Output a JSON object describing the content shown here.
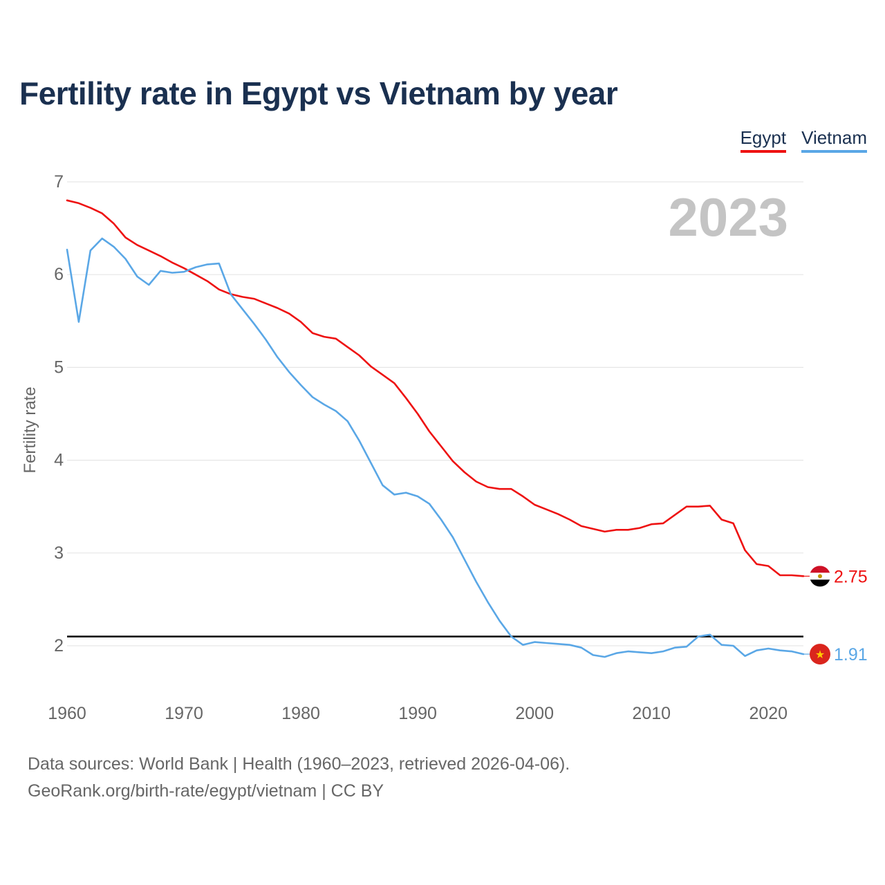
{
  "title": "Fertility rate in Egypt vs Vietnam by year",
  "legend": {
    "egypt_label": "Egypt",
    "vietnam_label": "Vietnam"
  },
  "colors": {
    "egypt": "#ee1111",
    "vietnam": "#5aa7e6",
    "replacement_line": "#000000",
    "grid": "#e6e6e6",
    "year_watermark": "#c4c4c4"
  },
  "source": {
    "line1": "Data sources: World Bank | Health (1960–2023, retrieved 2026-04-06).",
    "line2": "GeoRank.org/birth-rate/egypt/vietnam | CC BY"
  },
  "chart_data": {
    "type": "line",
    "title": "Fertility rate in Egypt vs Vietnam by year",
    "xlabel": "",
    "ylabel": "Fertility rate",
    "year_label": "2023",
    "xlim": [
      1960,
      2023
    ],
    "ylim": [
      1.5,
      7
    ],
    "x_ticks": [
      1960,
      1970,
      1980,
      1990,
      2000,
      2010,
      2020
    ],
    "y_ticks": [
      2,
      3,
      4,
      5,
      6,
      7
    ],
    "grid": true,
    "legend_position": "top-right",
    "reference_line": {
      "y": 2.1
    },
    "x": [
      1960,
      1961,
      1962,
      1963,
      1964,
      1965,
      1966,
      1967,
      1968,
      1969,
      1970,
      1971,
      1972,
      1973,
      1974,
      1975,
      1976,
      1977,
      1978,
      1979,
      1980,
      1981,
      1982,
      1983,
      1984,
      1985,
      1986,
      1987,
      1988,
      1989,
      1990,
      1991,
      1992,
      1993,
      1994,
      1995,
      1996,
      1997,
      1998,
      1999,
      2000,
      2001,
      2002,
      2003,
      2004,
      2005,
      2006,
      2007,
      2008,
      2009,
      2010,
      2011,
      2012,
      2013,
      2014,
      2015,
      2016,
      2017,
      2018,
      2019,
      2020,
      2021,
      2022,
      2023
    ],
    "series": [
      {
        "name": "Egypt",
        "end_label": "2.75",
        "values": [
          6.8,
          6.77,
          6.72,
          6.66,
          6.55,
          6.4,
          6.32,
          6.26,
          6.2,
          6.13,
          6.07,
          6.0,
          5.93,
          5.84,
          5.79,
          5.76,
          5.74,
          5.69,
          5.64,
          5.58,
          5.49,
          5.37,
          5.33,
          5.31,
          5.22,
          5.13,
          5.01,
          4.92,
          4.83,
          4.67,
          4.5,
          4.31,
          4.15,
          3.99,
          3.87,
          3.77,
          3.71,
          3.69,
          3.69,
          3.61,
          3.52,
          3.47,
          3.42,
          3.36,
          3.29,
          3.26,
          3.23,
          3.25,
          3.25,
          3.27,
          3.31,
          3.32,
          3.41,
          3.5,
          3.5,
          3.51,
          3.36,
          3.32,
          3.03,
          2.88,
          2.86,
          2.76,
          2.76,
          2.75
        ]
      },
      {
        "name": "Vietnam",
        "end_label": "1.91",
        "values": [
          6.27,
          5.49,
          6.26,
          6.39,
          6.3,
          6.17,
          5.98,
          5.89,
          6.04,
          6.02,
          6.03,
          6.08,
          6.11,
          6.12,
          5.79,
          5.63,
          5.47,
          5.3,
          5.11,
          4.95,
          4.81,
          4.68,
          4.6,
          4.53,
          4.42,
          4.21,
          3.97,
          3.73,
          3.63,
          3.65,
          3.61,
          3.53,
          3.36,
          3.17,
          2.93,
          2.69,
          2.47,
          2.27,
          2.1,
          2.01,
          2.04,
          2.03,
          2.02,
          2.01,
          1.98,
          1.9,
          1.88,
          1.92,
          1.94,
          1.93,
          1.92,
          1.94,
          1.98,
          1.99,
          2.1,
          2.12,
          2.01,
          2.0,
          1.89,
          1.95,
          1.97,
          1.95,
          1.94,
          1.91
        ]
      }
    ]
  }
}
